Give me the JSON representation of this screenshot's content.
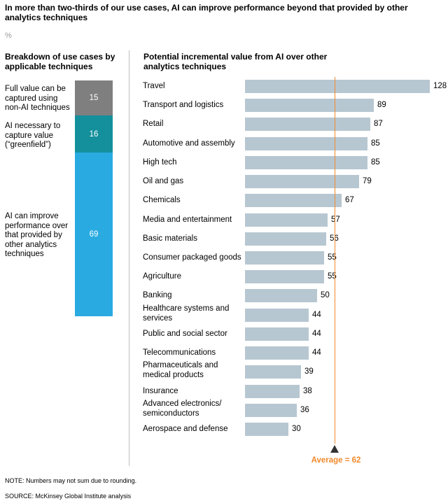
{
  "title": "In more than two-thirds of our use cases, AI can improve performance beyond that provided by other analytics techniques",
  "unit": "%",
  "left_panel": {
    "heading": "Breakdown of use cases by applicable techniques",
    "segments": [
      {
        "label": "Full value can be captured using non-AI techniques",
        "value": 15,
        "color": "#7f7f7f"
      },
      {
        "label": "AI necessary to capture value (“greenfield”)",
        "value": 16,
        "color": "#13909c"
      },
      {
        "label": "AI can improve performance over that provided by other analytics techniques",
        "value": 69,
        "color": "#29abe2"
      }
    ]
  },
  "right_panel": {
    "heading": "Potential incremental value from AI over other analytics techniques",
    "average_label": "Average = 62",
    "average_value": 62,
    "bar_color": "#b7c7d1",
    "average_color": "#f08a2c"
  },
  "chart_data": [
    {
      "type": "bar",
      "orientation": "vertical-stacked",
      "title": "Breakdown of use cases by applicable techniques",
      "unit": "%",
      "series": [
        {
          "name": "Full value can be captured using non-AI techniques",
          "values": [
            15
          ]
        },
        {
          "name": "AI necessary to capture value (“greenfield”)",
          "values": [
            16
          ]
        },
        {
          "name": "AI can improve performance over that provided by other analytics techniques",
          "values": [
            69
          ]
        }
      ]
    },
    {
      "type": "bar",
      "orientation": "horizontal",
      "title": "Potential incremental value from AI over other analytics techniques",
      "unit": "%",
      "xlim": [
        0,
        128
      ],
      "categories": [
        "Travel",
        "Transport and logistics",
        "Retail",
        "Automotive and assembly",
        "High tech",
        "Oil and gas",
        "Chemicals",
        "Media and entertainment",
        "Basic materials",
        "Consumer packaged goods",
        "Agriculture",
        "Banking",
        "Healthcare systems and services",
        "Public and social sector",
        "Telecommunications",
        "Pharmaceuticals and medical products",
        "Insurance",
        "Advanced electronics/ semiconductors",
        "Aerospace and defense"
      ],
      "values": [
        128,
        89,
        87,
        85,
        85,
        79,
        67,
        57,
        56,
        55,
        55,
        50,
        44,
        44,
        44,
        39,
        38,
        36,
        30
      ],
      "reference_line": {
        "label": "Average = 62",
        "value": 62
      }
    }
  ],
  "footer": {
    "note": "NOTE: Numbers may not sum due to rounding.",
    "source": "SOURCE:  McKinsey Global Institute analysis"
  }
}
